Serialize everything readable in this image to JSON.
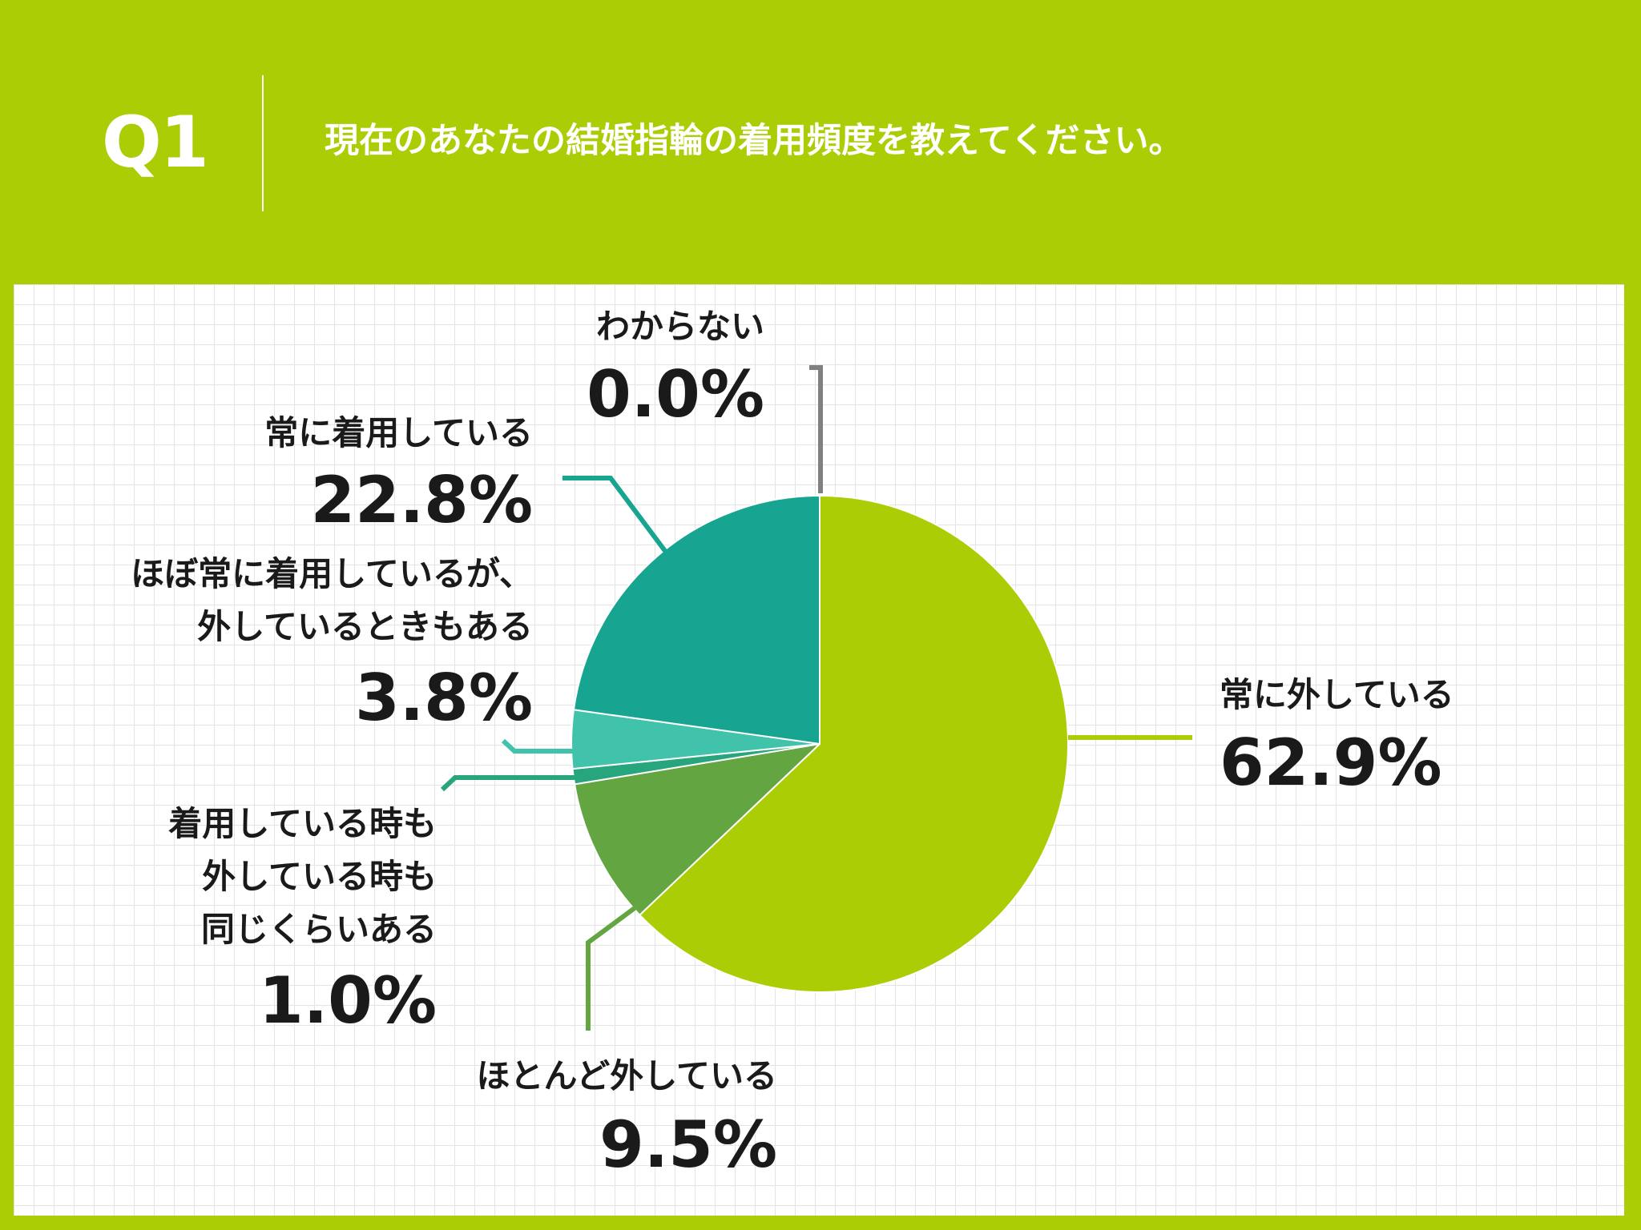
{
  "header": {
    "q_label": "Q1",
    "question": "現在のあなたの結婚指輪の着用頻度を教えてください。"
  },
  "colors": {
    "background": "#abcd05",
    "grid": "#e4e4e4",
    "leader_unknown": "#808080"
  },
  "chart_data": {
    "type": "pie",
    "title": "現在のあなたの結婚指輪の着用頻度を教えてください。",
    "start_angle_deg": 0,
    "direction": "clockwise",
    "slices": [
      {
        "key": "always_off",
        "label_lines": [
          "常に外している"
        ],
        "value": 62.9,
        "value_label": "62.9%",
        "color": "#abcd05"
      },
      {
        "key": "mostly_off",
        "label_lines": [
          "ほとんど外している"
        ],
        "value": 9.5,
        "value_label": "9.5%",
        "color": "#63a541"
      },
      {
        "key": "same",
        "label_lines": [
          "着用している時も",
          "外している時も",
          "同じくらいある"
        ],
        "value": 1.0,
        "value_label": "1.0%",
        "color": "#27a57c"
      },
      {
        "key": "mostly_on",
        "label_lines": [
          "ほぼ常に着用しているが、",
          "外しているときもある"
        ],
        "value": 3.8,
        "value_label": "3.8%",
        "color": "#41c2ab"
      },
      {
        "key": "always_on",
        "label_lines": [
          "常に着用している"
        ],
        "value": 22.8,
        "value_label": "22.8%",
        "color": "#17a591"
      },
      {
        "key": "unknown",
        "label_lines": [
          "わからない"
        ],
        "value": 0.0,
        "value_label": "0.0%",
        "color": "#9a9a9a"
      }
    ]
  }
}
